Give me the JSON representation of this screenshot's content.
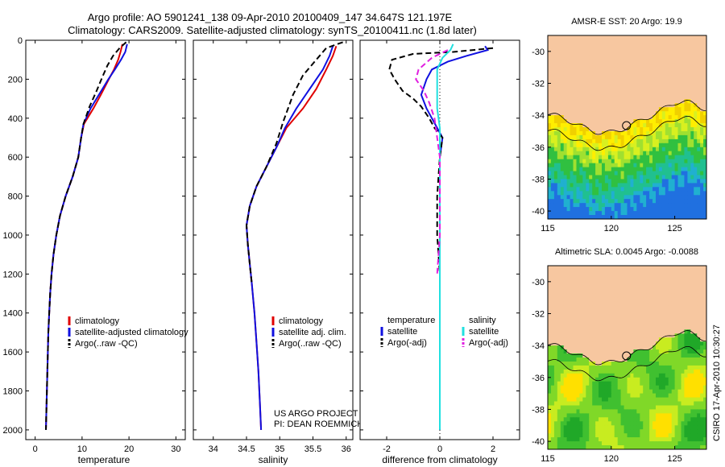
{
  "header": {
    "line1": "Argo profile: AO 5901241_138 09-Apr-2010 20100409_147 34.647S 121.197E",
    "line2": "Climatology: CARS2009. Satellite-adjusted climatology: synTS_20100411.nc (1.8d later)"
  },
  "credits": {
    "project": "US ARGO PROJECT",
    "pi": "PI: DEAN ROEMMICH",
    "stamp": "CSIRO 17-Apr-2010 10:30:27"
  },
  "colors": {
    "climatology": "#e00000",
    "satellite": "#1010e0",
    "argo": "#000000",
    "salinity_satellite": "#20e0e0",
    "salinity_argo": "#e020e0",
    "land": "#f7c7a0"
  },
  "chart_data": [
    {
      "type": "line",
      "id": "temperature",
      "xlabel": "temperature",
      "ylabel": "",
      "xlim": [
        -2,
        32
      ],
      "ylim": [
        2050,
        0
      ],
      "y_reversed": true,
      "xticks": [
        0,
        10,
        20,
        30
      ],
      "yticks": [
        0,
        200,
        400,
        600,
        800,
        1000,
        1200,
        1400,
        1600,
        1800,
        2000
      ],
      "legend": [
        "climatology",
        "satellite-adjusted climatology",
        "Argo(..raw -QC)"
      ],
      "series": [
        {
          "name": "climatology",
          "color": "#e00000",
          "dash": "",
          "points": [
            [
              18.6,
              20
            ],
            [
              18.2,
              60
            ],
            [
              17.7,
              100
            ],
            [
              16.8,
              150
            ],
            [
              15.7,
              200
            ],
            [
              14.0,
              280
            ],
            [
              12.4,
              350
            ],
            [
              10.4,
              430
            ],
            [
              9.8,
              500
            ],
            [
              9.2,
              600
            ],
            [
              8.0,
              700
            ],
            [
              6.5,
              800
            ],
            [
              5.3,
              900
            ],
            [
              4.5,
              1000
            ],
            [
              3.9,
              1100
            ],
            [
              3.5,
              1200
            ],
            [
              3.2,
              1300
            ],
            [
              3.0,
              1400
            ],
            [
              2.8,
              1500
            ],
            [
              2.7,
              1600
            ],
            [
              2.6,
              1700
            ],
            [
              2.5,
              1800
            ],
            [
              2.4,
              1900
            ],
            [
              2.3,
              2000
            ]
          ]
        },
        {
          "name": "satellite-adjusted climatology",
          "color": "#1010e0",
          "dash": "",
          "points": [
            [
              19.6,
              20
            ],
            [
              19.2,
              60
            ],
            [
              18.3,
              100
            ],
            [
              17.0,
              150
            ],
            [
              15.6,
              200
            ],
            [
              13.6,
              280
            ],
            [
              11.8,
              350
            ],
            [
              10.3,
              430
            ],
            [
              9.8,
              500
            ],
            [
              9.2,
              600
            ],
            [
              8.0,
              700
            ],
            [
              6.5,
              800
            ],
            [
              5.3,
              900
            ],
            [
              4.5,
              1000
            ],
            [
              3.9,
              1100
            ],
            [
              3.5,
              1200
            ],
            [
              3.2,
              1300
            ],
            [
              3.0,
              1400
            ],
            [
              2.8,
              1500
            ],
            [
              2.7,
              1600
            ],
            [
              2.6,
              1700
            ],
            [
              2.5,
              1800
            ],
            [
              2.4,
              1900
            ],
            [
              2.3,
              2000
            ]
          ]
        },
        {
          "name": "Argo(..raw -QC)",
          "color": "#000000",
          "dash": "7,4",
          "points": [
            [
              19.4,
              10
            ],
            [
              18.0,
              40
            ],
            [
              16.6,
              80
            ],
            [
              15.4,
              130
            ],
            [
              14.3,
              190
            ],
            [
              13.1,
              260
            ],
            [
              11.6,
              340
            ],
            [
              10.3,
              430
            ],
            [
              9.8,
              500
            ],
            [
              9.2,
              600
            ],
            [
              8.0,
              700
            ],
            [
              6.5,
              800
            ],
            [
              5.3,
              900
            ],
            [
              4.5,
              1000
            ],
            [
              3.9,
              1100
            ],
            [
              3.5,
              1200
            ],
            [
              3.2,
              1300
            ],
            [
              3.0,
              1400
            ],
            [
              2.8,
              1500
            ],
            [
              2.7,
              1600
            ],
            [
              2.6,
              1700
            ],
            [
              2.5,
              1800
            ],
            [
              2.4,
              1900
            ],
            [
              2.3,
              2000
            ]
          ]
        }
      ]
    },
    {
      "type": "line",
      "id": "salinity",
      "xlabel": "salinity",
      "ylabel": "",
      "xlim": [
        33.7,
        36.1
      ],
      "ylim": [
        2050,
        0
      ],
      "y_reversed": true,
      "xticks": [
        34,
        34.5,
        35,
        35.5,
        36
      ],
      "legend": [
        "climatology",
        "satellite adj. clim.",
        "Argo(..raw -QC)"
      ],
      "series": [
        {
          "name": "climatology",
          "color": "#e00000",
          "dash": "",
          "points": [
            [
              35.85,
              30
            ],
            [
              35.8,
              80
            ],
            [
              35.7,
              150
            ],
            [
              35.55,
              250
            ],
            [
              35.35,
              350
            ],
            [
              35.1,
              450
            ],
            [
              34.95,
              550
            ],
            [
              34.8,
              650
            ],
            [
              34.65,
              750
            ],
            [
              34.55,
              850
            ],
            [
              34.5,
              950
            ],
            [
              34.52,
              1050
            ],
            [
              34.55,
              1150
            ],
            [
              34.58,
              1250
            ],
            [
              34.62,
              1400
            ],
            [
              34.65,
              1550
            ],
            [
              34.68,
              1700
            ],
            [
              34.7,
              1850
            ],
            [
              34.72,
              2000
            ]
          ]
        },
        {
          "name": "satellite adj. clim.",
          "color": "#1010e0",
          "dash": "",
          "points": [
            [
              35.8,
              30
            ],
            [
              35.75,
              80
            ],
            [
              35.65,
              150
            ],
            [
              35.45,
              250
            ],
            [
              35.25,
              350
            ],
            [
              35.08,
              450
            ],
            [
              34.95,
              550
            ],
            [
              34.8,
              650
            ],
            [
              34.65,
              750
            ],
            [
              34.55,
              850
            ],
            [
              34.5,
              950
            ],
            [
              34.52,
              1050
            ],
            [
              34.55,
              1150
            ],
            [
              34.58,
              1250
            ],
            [
              34.62,
              1400
            ],
            [
              34.65,
              1550
            ],
            [
              34.68,
              1700
            ],
            [
              34.7,
              1850
            ],
            [
              34.72,
              2000
            ]
          ]
        },
        {
          "name": "Argo(..raw -QC)",
          "color": "#000000",
          "dash": "7,4",
          "points": [
            [
              35.95,
              10
            ],
            [
              35.7,
              40
            ],
            [
              35.55,
              100
            ],
            [
              35.35,
              180
            ],
            [
              35.2,
              280
            ],
            [
              35.05,
              420
            ],
            [
              34.95,
              530
            ],
            [
              34.8,
              650
            ],
            [
              34.65,
              750
            ],
            [
              34.55,
              850
            ],
            [
              34.5,
              950
            ],
            [
              34.52,
              1050
            ],
            [
              34.55,
              1150
            ],
            [
              34.58,
              1250
            ]
          ]
        }
      ]
    },
    {
      "type": "line",
      "id": "difference",
      "xlabel": "difference from climatology",
      "ylabel": "",
      "xlim": [
        -3,
        3
      ],
      "ylim": [
        2050,
        0
      ],
      "y_reversed": true,
      "xticks": [
        -2,
        0,
        2
      ],
      "legend_groups": [
        {
          "title": "temperature",
          "entries": [
            "satellite",
            "Argo(-adj)"
          ]
        },
        {
          "title": "salinity",
          "entries": [
            "satellite",
            "Argo(-adj)"
          ]
        }
      ],
      "series": [
        {
          "name": "temperature satellite",
          "color": "#1010e0",
          "dash": "",
          "points": [
            [
              1.7,
              30
            ],
            [
              1.8,
              50
            ],
            [
              1.0,
              80
            ],
            [
              0.3,
              110
            ],
            [
              -0.3,
              150
            ],
            [
              -0.5,
              200
            ],
            [
              -0.7,
              280
            ],
            [
              -0.5,
              350
            ],
            [
              -0.3,
              400
            ],
            [
              -0.1,
              450
            ],
            [
              0.1,
              500
            ],
            [
              0.0,
              600
            ],
            [
              0.0,
              800
            ],
            [
              0.0,
              1000
            ],
            [
              0.0,
              1200
            ],
            [
              0.0,
              1500
            ],
            [
              0.0,
              2000
            ]
          ]
        },
        {
          "name": "temperature Argo(-adj)",
          "color": "#000000",
          "dash": "7,4",
          "points": [
            [
              2.0,
              40
            ],
            [
              0.5,
              60
            ],
            [
              -1.0,
              70
            ],
            [
              -1.8,
              100
            ],
            [
              -1.9,
              150
            ],
            [
              -1.7,
              200
            ],
            [
              -1.4,
              260
            ],
            [
              -1.0,
              300
            ],
            [
              -0.7,
              340
            ],
            [
              -0.4,
              400
            ],
            [
              -0.2,
              450
            ],
            [
              0.1,
              500
            ],
            [
              0.0,
              600
            ],
            [
              -0.1,
              800
            ],
            [
              -0.1,
              1000
            ],
            [
              0.0,
              1200
            ]
          ]
        },
        {
          "name": "salinity satellite",
          "color": "#20e0e0",
          "dash": "",
          "points": [
            [
              0.5,
              20
            ],
            [
              0.4,
              50
            ],
            [
              0.1,
              90
            ],
            [
              -0.1,
              150
            ],
            [
              -0.1,
              250
            ],
            [
              -0.1,
              350
            ],
            [
              0.0,
              450
            ],
            [
              0.0,
              600
            ],
            [
              0.0,
              800
            ],
            [
              0.0,
              1000
            ],
            [
              0.0,
              1200
            ],
            [
              0.0,
              1500
            ],
            [
              0.0,
              2000
            ]
          ]
        },
        {
          "name": "salinity Argo(-adj)",
          "color": "#e020e0",
          "dash": "7,4",
          "points": [
            [
              0.3,
              50
            ],
            [
              -0.3,
              90
            ],
            [
              -0.8,
              150
            ],
            [
              -0.9,
              200
            ],
            [
              -0.6,
              260
            ],
            [
              -0.4,
              320
            ],
            [
              -0.2,
              400
            ],
            [
              -0.1,
              500
            ],
            [
              0.0,
              600
            ],
            [
              0.0,
              800
            ],
            [
              0.0,
              1000
            ],
            [
              -0.1,
              1200
            ]
          ]
        }
      ]
    },
    {
      "type": "heatmap",
      "id": "sst_map",
      "title": "AMSR-E SST: 20 Argo: 19.9",
      "xlim": [
        115,
        127.5
      ],
      "ylim": [
        -40.5,
        -29
      ],
      "xticks": [
        115,
        120,
        125
      ],
      "yticks": [
        -30,
        -32,
        -34,
        -36,
        -38,
        -40
      ],
      "marker": {
        "lon": 121.197,
        "lat": -34.647
      },
      "value_unit": "degC"
    },
    {
      "type": "heatmap",
      "id": "sla_map",
      "title": "Altimetric SLA: 0.0045 Argo: -0.0088",
      "xlim": [
        115,
        127.5
      ],
      "ylim": [
        -40.5,
        -29
      ],
      "xticks": [
        115,
        120,
        125
      ],
      "yticks": [
        -30,
        -32,
        -34,
        -36,
        -38,
        -40
      ],
      "marker": {
        "lon": 121.197,
        "lat": -34.647
      },
      "value_unit": "m"
    }
  ]
}
